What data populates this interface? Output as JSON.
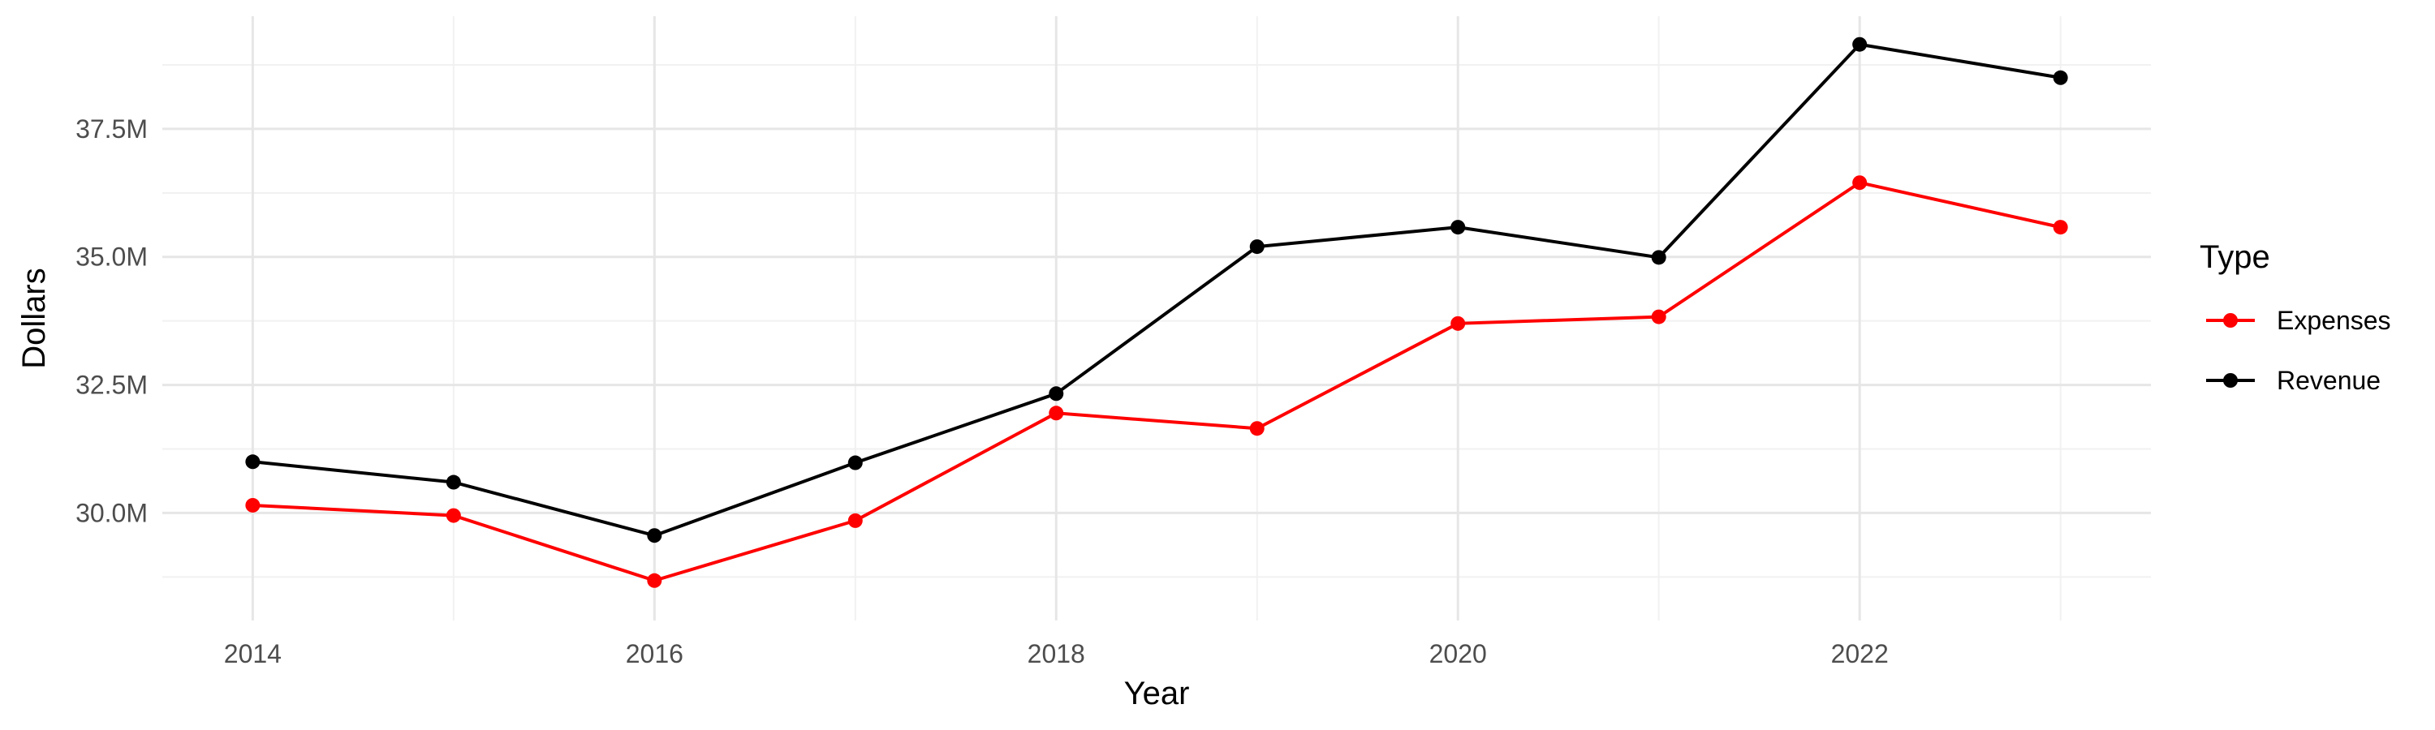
{
  "chart_data": {
    "type": "line",
    "title": "",
    "xlabel": "Year",
    "ylabel": "Dollars",
    "x": [
      2014,
      2015,
      2016,
      2017,
      2018,
      2019,
      2020,
      2021,
      2022,
      2023
    ],
    "x_ticks": [
      "2014",
      "2016",
      "2018",
      "2020",
      "2022"
    ],
    "x_tick_values": [
      2014,
      2016,
      2018,
      2020,
      2022
    ],
    "y_ticks": [
      "30.0M",
      "32.5M",
      "35.0M",
      "37.5M"
    ],
    "y_tick_values": [
      30000000,
      32500000,
      35000000,
      37500000
    ],
    "xlim": [
      2013.55,
      2023.45
    ],
    "ylim": [
      27900000,
      39700000
    ],
    "grid": true,
    "legend": {
      "title": "Type",
      "placement": "right"
    },
    "series": [
      {
        "name": "Expenses",
        "color": "#ff0000",
        "values": [
          30150000,
          29950000,
          28680000,
          29850000,
          31950000,
          31650000,
          33700000,
          33830000,
          36450000,
          35580000
        ]
      },
      {
        "name": "Revenue",
        "color": "#000000",
        "values": [
          31000000,
          30600000,
          29560000,
          30980000,
          32330000,
          35200000,
          35580000,
          34990000,
          39150000,
          38500000
        ]
      }
    ]
  }
}
